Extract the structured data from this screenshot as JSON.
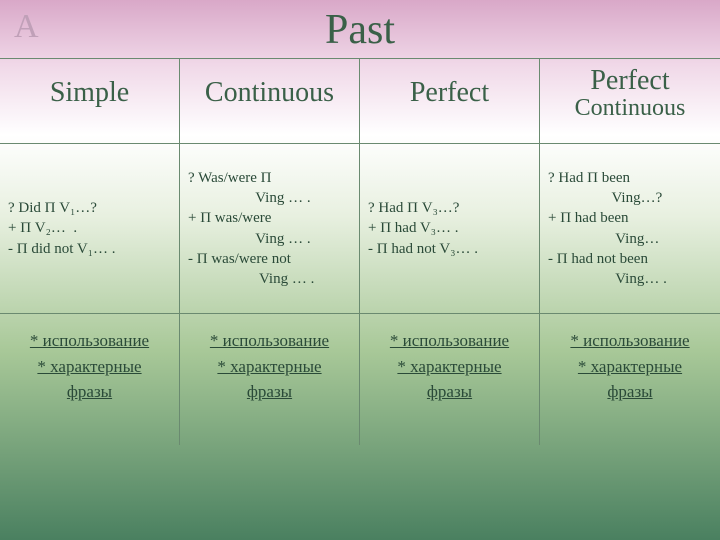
{
  "corner_letter": "A",
  "title": "Past",
  "columns": [
    {
      "main": "Simple",
      "sub": ""
    },
    {
      "main": "Continuous",
      "sub": ""
    },
    {
      "main": "Perfect",
      "sub": ""
    },
    {
      "main": "Perfect",
      "sub": "Continuous"
    }
  ],
  "rules": {
    "simple": {
      "q": "? Did П V₁…?",
      "p": "+ П V₂…  .",
      "n": "- П did not V₁… ."
    },
    "continuous": {
      "q1": "? Was/were П",
      "q2": "                  Ving … .",
      "p1": "+ П was/were",
      "p2": "                  Ving … .",
      "n1": "- П was/were not",
      "n2": "                   Ving … ."
    },
    "perfect": {
      "q": "? Had П V₃…?",
      "p": "+ П had V₃… .",
      "n": "- П had not V₃… ."
    },
    "perfect_cont": {
      "q1": "? Had П been",
      "q2": "                 Ving…?",
      "p1": "+ П had been",
      "p2": "                  Ving…",
      "n1": "- П had not been",
      "n2": "                  Ving… ."
    }
  },
  "links": {
    "usage": "* использование",
    "phrases": "* характерные",
    "phrases2": "фразы"
  },
  "colors": {
    "heading": "#3a6048",
    "text": "#2a4a38",
    "border": "#6a8a70",
    "gradient_top": "#d9a8c8",
    "gradient_bottom": "#4a8060"
  }
}
